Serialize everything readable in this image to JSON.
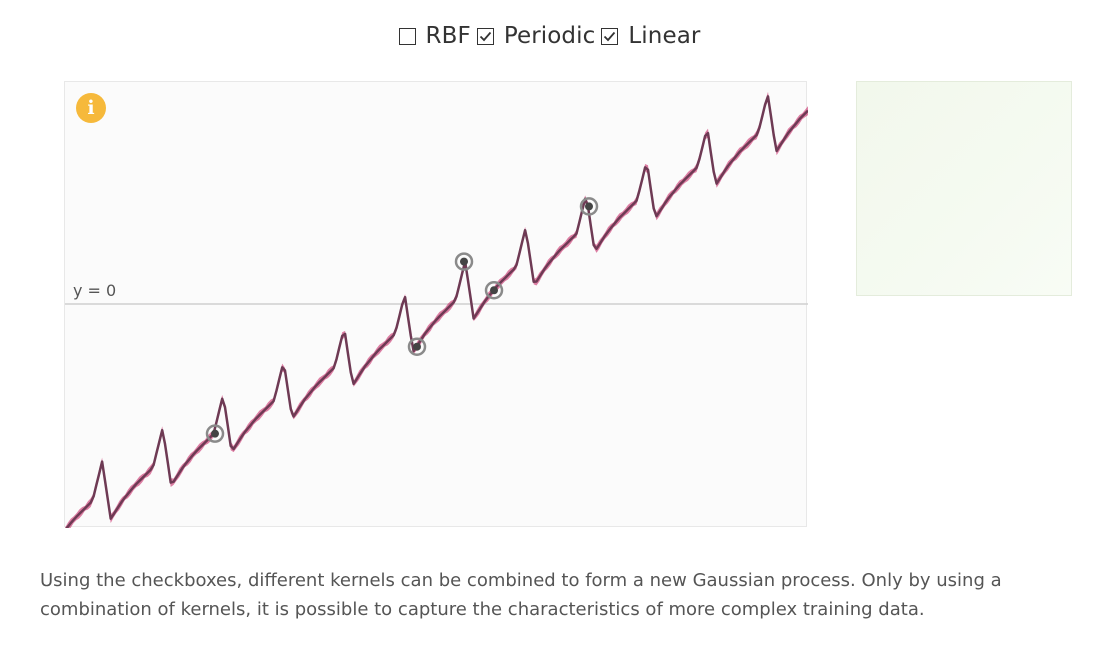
{
  "kernels": [
    {
      "label": "RBF",
      "checked": false
    },
    {
      "label": "Periodic",
      "checked": true
    },
    {
      "label": "Linear",
      "checked": true
    }
  ],
  "plot": {
    "info_icon_glyph": "i",
    "zero_line_label": "y = 0",
    "mean_line_color": "#6e3a54",
    "uncertainty_band_color": "#c2185b",
    "info_icon_color": "#f6b93b"
  },
  "description": "Using the checkboxes, different kernels can be combined to form a new Gaussian process. Only by using a combination of kernels, it is possible to capture the characteristics of more complex training data."
}
